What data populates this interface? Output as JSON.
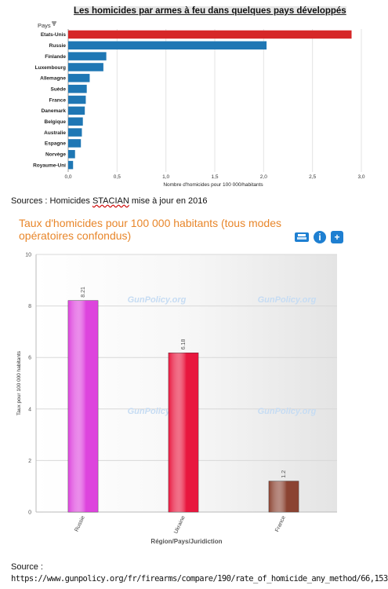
{
  "chart1": {
    "title": "Les homicides par armes à feu dans quelques pays développés",
    "legend_label": "Pays",
    "chart_data": {
      "type": "bar",
      "orientation": "horizontal",
      "categories": [
        "Etats-Unis",
        "Russie",
        "Finlande",
        "Luxembourg",
        "Allemagne",
        "Suède",
        "France",
        "Danemark",
        "Belgique",
        "Australie",
        "Espagne",
        "Norvège",
        "Royaume-Uni"
      ],
      "values": [
        2.9,
        2.03,
        0.39,
        0.36,
        0.22,
        0.19,
        0.18,
        0.17,
        0.15,
        0.14,
        0.13,
        0.07,
        0.05
      ],
      "colors": [
        "#d62728",
        "#1f77b4",
        "#1f77b4",
        "#1f77b4",
        "#1f77b4",
        "#1f77b4",
        "#1f77b4",
        "#1f77b4",
        "#1f77b4",
        "#1f77b4",
        "#1f77b4",
        "#1f77b4",
        "#1f77b4"
      ],
      "xlabel": "Nombre d'homicides pour 100 000/habitants",
      "xlim": [
        0,
        3.0
      ],
      "xticks": [
        "0,0",
        "0,5",
        "1,0",
        "1,5",
        "2,0",
        "2,5",
        "3,0"
      ]
    }
  },
  "sources1": {
    "prefix": "Sources : Homicides ",
    "stacian": "STACIAN",
    "suffix": " mise à jour en 2016"
  },
  "chart2": {
    "title": "Taux d'homicides pour 100 000 habitants (tous modes opératoires confondus)",
    "icons": [
      "printer-icon",
      "info-icon",
      "plus-icon"
    ],
    "watermark": "GunPolicy.org",
    "chart_data": {
      "type": "bar",
      "categories": [
        "Russie",
        "Ukraine",
        "France"
      ],
      "values": [
        8.21,
        6.18,
        1.2
      ],
      "value_labels": [
        "8.21",
        "6.18",
        "1.2"
      ],
      "colors": [
        "#dd44dd",
        "#e8173e",
        "#8b4332"
      ],
      "ylabel": "Taux pour 100 000 habitants",
      "xlabel": "Région/Pays/Juridiction",
      "ylim": [
        0,
        10
      ],
      "yticks": [
        "0",
        "2",
        "4",
        "6",
        "8",
        "10"
      ]
    }
  },
  "sources2": {
    "label": "Source :",
    "url": "https://www.gunpolicy.org/fr/firearms/compare/190/rate_of_homicide_any_method/66,153"
  }
}
